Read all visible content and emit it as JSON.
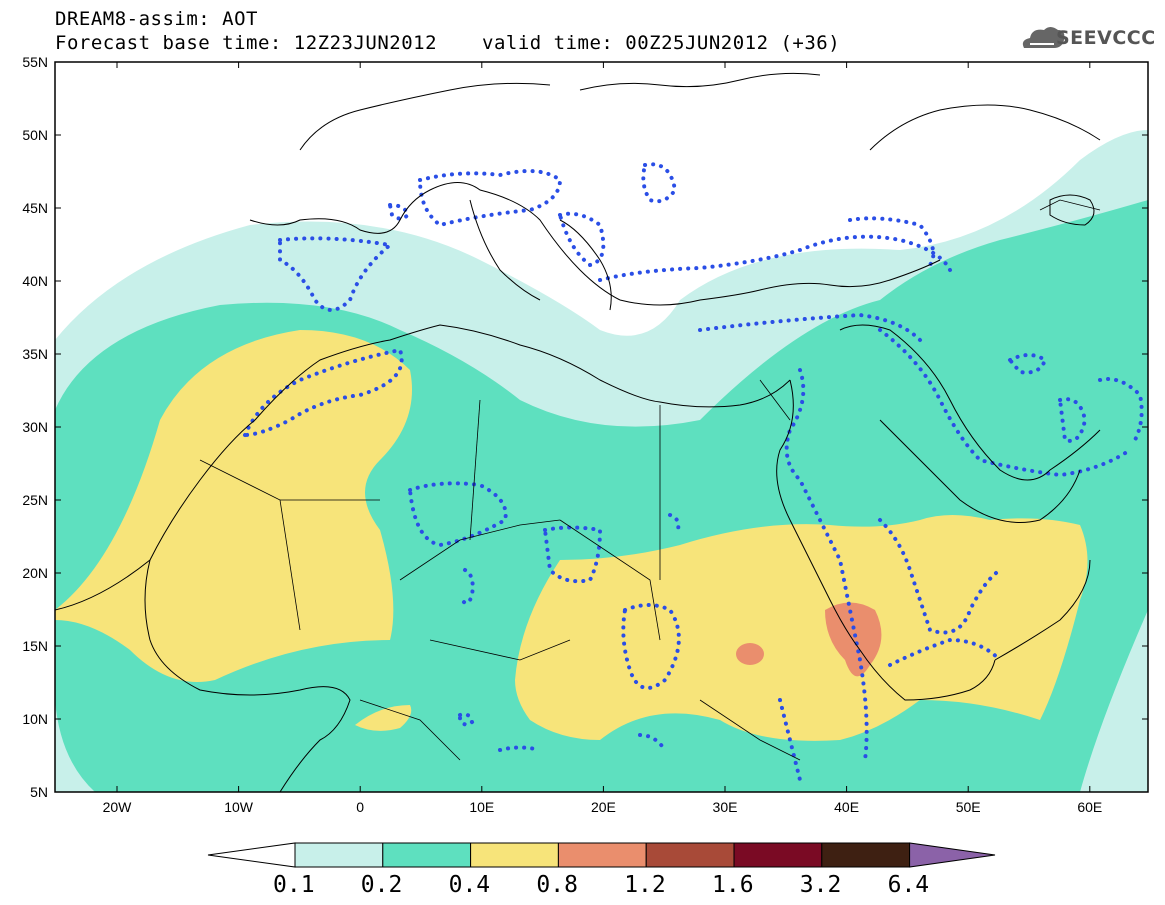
{
  "header": {
    "title": "DREAM8-assim: AOT",
    "base": "Forecast base time: 12Z23JUN2012",
    "valid": "valid time: 00Z25JUN2012 (+36)",
    "logo": "SEEVCCC"
  },
  "axes": {
    "y_labels": [
      "55N",
      "50N",
      "45N",
      "40N",
      "35N",
      "30N",
      "25N",
      "20N",
      "15N",
      "10N",
      "5N"
    ],
    "x_labels": [
      "20W",
      "10W",
      "0",
      "10E",
      "20E",
      "30E",
      "40E",
      "50E",
      "60E"
    ]
  },
  "legend": {
    "labels": [
      "0.1",
      "0.2",
      "0.4",
      "0.8",
      "1.2",
      "1.6",
      "3.2",
      "6.4"
    ],
    "colors": [
      "#ffffff",
      "#c8f0ea",
      "#5ee0bf",
      "#f7e47a",
      "#ea8e6d",
      "#a84a38",
      "#7a0a24",
      "#3e2012",
      "#8b62a8"
    ]
  }
}
